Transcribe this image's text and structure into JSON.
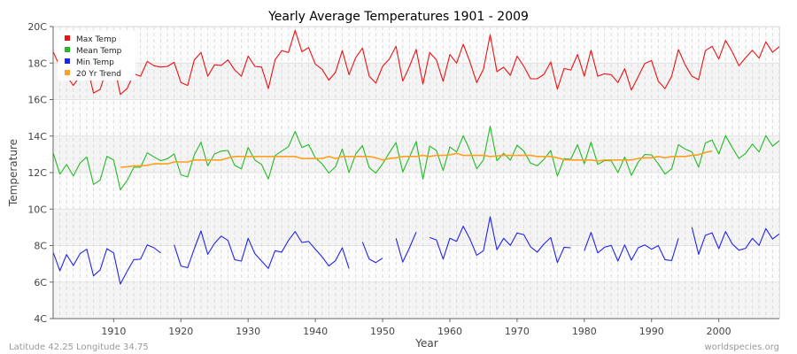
{
  "chart_data": {
    "type": "line",
    "title": "Yearly Average Temperatures 1901 - 2009",
    "xlabel": "Year",
    "ylabel": "Temperature",
    "xlim": [
      1901,
      2009
    ],
    "ylim": [
      4,
      20
    ],
    "x_ticks": [
      1910,
      1920,
      1930,
      1940,
      1950,
      1960,
      1970,
      1980,
      1990,
      2000
    ],
    "y_ticks": [
      4,
      6,
      8,
      10,
      12,
      14,
      16,
      18,
      20
    ],
    "y_tick_labels": [
      "4C",
      "6C",
      "8C",
      "10C",
      "12C",
      "14C",
      "16C",
      "18C",
      "20C"
    ],
    "grid": true,
    "legend_placement": "top-left",
    "x_start": 1901,
    "series": [
      {
        "name": "Max Temp",
        "color": "#ee1111",
        "start": 1901,
        "values": [
          18.63,
          17.8,
          17.3,
          16.77,
          17.3,
          17.9,
          16.36,
          16.56,
          17.7,
          18.0,
          16.28,
          16.6,
          17.41,
          17.28,
          18.09,
          17.85,
          17.78,
          17.82,
          18.04,
          16.93,
          16.77,
          18.17,
          18.58,
          17.28,
          17.9,
          17.87,
          18.17,
          17.62,
          17.28,
          18.38,
          17.82,
          17.78,
          16.6,
          18.17,
          18.68,
          18.58,
          19.79,
          18.62,
          18.85,
          17.94,
          17.66,
          17.06,
          17.5,
          18.68,
          17.36,
          18.3,
          18.82,
          17.28,
          16.9,
          17.82,
          18.22,
          18.92,
          17.01,
          17.82,
          18.75,
          16.85,
          18.58,
          18.17,
          17.0,
          18.47,
          18.0,
          19.03,
          18.06,
          16.93,
          17.66,
          19.55,
          17.53,
          17.77,
          17.33,
          18.38,
          17.82,
          17.14,
          17.14,
          17.38,
          18.06,
          16.57,
          17.7,
          17.62,
          18.47,
          17.28,
          18.7,
          17.28,
          17.41,
          17.36,
          16.93,
          17.69,
          16.52,
          17.25,
          17.98,
          18.14,
          17.01,
          16.6,
          17.28,
          18.74,
          17.9,
          17.28,
          17.09,
          18.68,
          18.92,
          18.22,
          19.24,
          18.62,
          17.85,
          18.3,
          18.7,
          18.27,
          19.16,
          18.59,
          18.9
        ]
      },
      {
        "name": "Mean Temp",
        "color": "#22bb22",
        "start": 1901,
        "values": [
          13.08,
          11.92,
          12.44,
          11.81,
          12.53,
          12.86,
          11.35,
          11.59,
          12.89,
          12.69,
          11.06,
          11.56,
          12.29,
          12.29,
          13.08,
          12.86,
          12.65,
          12.76,
          13.02,
          11.88,
          11.76,
          12.97,
          13.67,
          12.37,
          13.02,
          13.18,
          13.21,
          12.4,
          12.21,
          13.37,
          12.69,
          12.44,
          11.64,
          12.93,
          13.18,
          13.42,
          14.26,
          13.37,
          13.53,
          12.81,
          12.48,
          11.97,
          12.32,
          13.29,
          12.0,
          13.02,
          13.48,
          12.27,
          11.97,
          12.48,
          13.08,
          13.65,
          12.03,
          12.86,
          13.7,
          11.64,
          13.45,
          13.21,
          12.11,
          13.4,
          13.13,
          14.02,
          13.21,
          12.21,
          12.69,
          14.54,
          12.65,
          13.05,
          12.68,
          13.5,
          13.18,
          12.52,
          12.37,
          12.73,
          13.21,
          11.81,
          12.76,
          12.73,
          13.53,
          12.48,
          13.67,
          12.45,
          12.65,
          12.65,
          12.0,
          12.86,
          11.84,
          12.57,
          12.99,
          12.97,
          12.48,
          11.92,
          12.21,
          13.53,
          13.29,
          13.13,
          12.29,
          13.62,
          13.78,
          13.02,
          14.02,
          13.37,
          12.77,
          13.05,
          13.56,
          13.13,
          14.02,
          13.45,
          13.74
        ]
      },
      {
        "name": "Min Temp",
        "color": "#2222ee",
        "start": 1901,
        "values": [
          7.64,
          6.62,
          7.51,
          6.91,
          7.56,
          7.8,
          6.34,
          6.67,
          7.83,
          7.6,
          5.89,
          6.59,
          7.23,
          7.26,
          8.04,
          7.88,
          7.6,
          null,
          8.04,
          6.88,
          6.79,
          7.83,
          8.8,
          7.52,
          8.12,
          8.52,
          8.28,
          7.23,
          7.15,
          8.4,
          7.56,
          7.15,
          6.75,
          7.72,
          7.64,
          8.28,
          8.77,
          8.17,
          8.23,
          7.8,
          7.39,
          6.88,
          7.18,
          7.88,
          6.75,
          null,
          8.2,
          7.26,
          7.07,
          7.31,
          null,
          8.4,
          7.1,
          7.88,
          8.74,
          null,
          8.44,
          8.31,
          7.26,
          8.4,
          8.23,
          9.06,
          8.36,
          7.47,
          7.72,
          9.58,
          7.77,
          8.4,
          8.01,
          8.69,
          8.6,
          7.93,
          7.64,
          8.09,
          8.44,
          7.07,
          7.91,
          7.88,
          null,
          7.72,
          8.72,
          7.6,
          7.91,
          8.01,
          7.15,
          8.04,
          7.2,
          7.88,
          8.04,
          7.8,
          8.0,
          7.23,
          7.18,
          8.4,
          null,
          9.01,
          7.52,
          8.56,
          8.7,
          7.83,
          8.77,
          8.09,
          7.75,
          7.85,
          8.4,
          8.01,
          8.93,
          8.36,
          8.64
        ]
      },
      {
        "name": "20 Yr Trend",
        "color": "#ffa020",
        "start": 1911,
        "values": [
          12.29,
          12.32,
          12.37,
          12.37,
          12.4,
          12.48,
          12.48,
          12.48,
          12.58,
          12.58,
          12.58,
          12.69,
          12.69,
          12.69,
          12.69,
          12.69,
          12.8,
          12.88,
          12.88,
          12.88,
          12.88,
          12.88,
          12.88,
          12.88,
          12.88,
          12.88,
          12.88,
          12.77,
          12.77,
          12.77,
          12.77,
          12.88,
          12.77,
          12.88,
          12.88,
          12.88,
          12.88,
          12.88,
          12.81,
          12.69,
          12.77,
          12.81,
          12.88,
          12.88,
          12.88,
          12.94,
          12.88,
          12.94,
          12.94,
          12.97,
          13.05,
          12.94,
          12.94,
          12.94,
          12.94,
          12.88,
          12.91,
          12.94,
          12.94,
          12.94,
          12.94,
          12.94,
          12.88,
          12.88,
          12.88,
          12.81,
          12.71,
          12.69,
          12.69,
          12.69,
          12.69,
          12.63,
          12.69,
          12.69,
          12.69,
          12.69,
          12.69,
          12.77,
          12.81,
          12.81,
          12.88,
          12.81,
          12.88,
          12.88,
          12.88,
          12.94,
          12.98,
          13.1,
          13.18
        ]
      }
    ]
  },
  "footer": {
    "location": "Latitude 42.25 Longitude 34.75",
    "source": "worldspecies.org"
  }
}
